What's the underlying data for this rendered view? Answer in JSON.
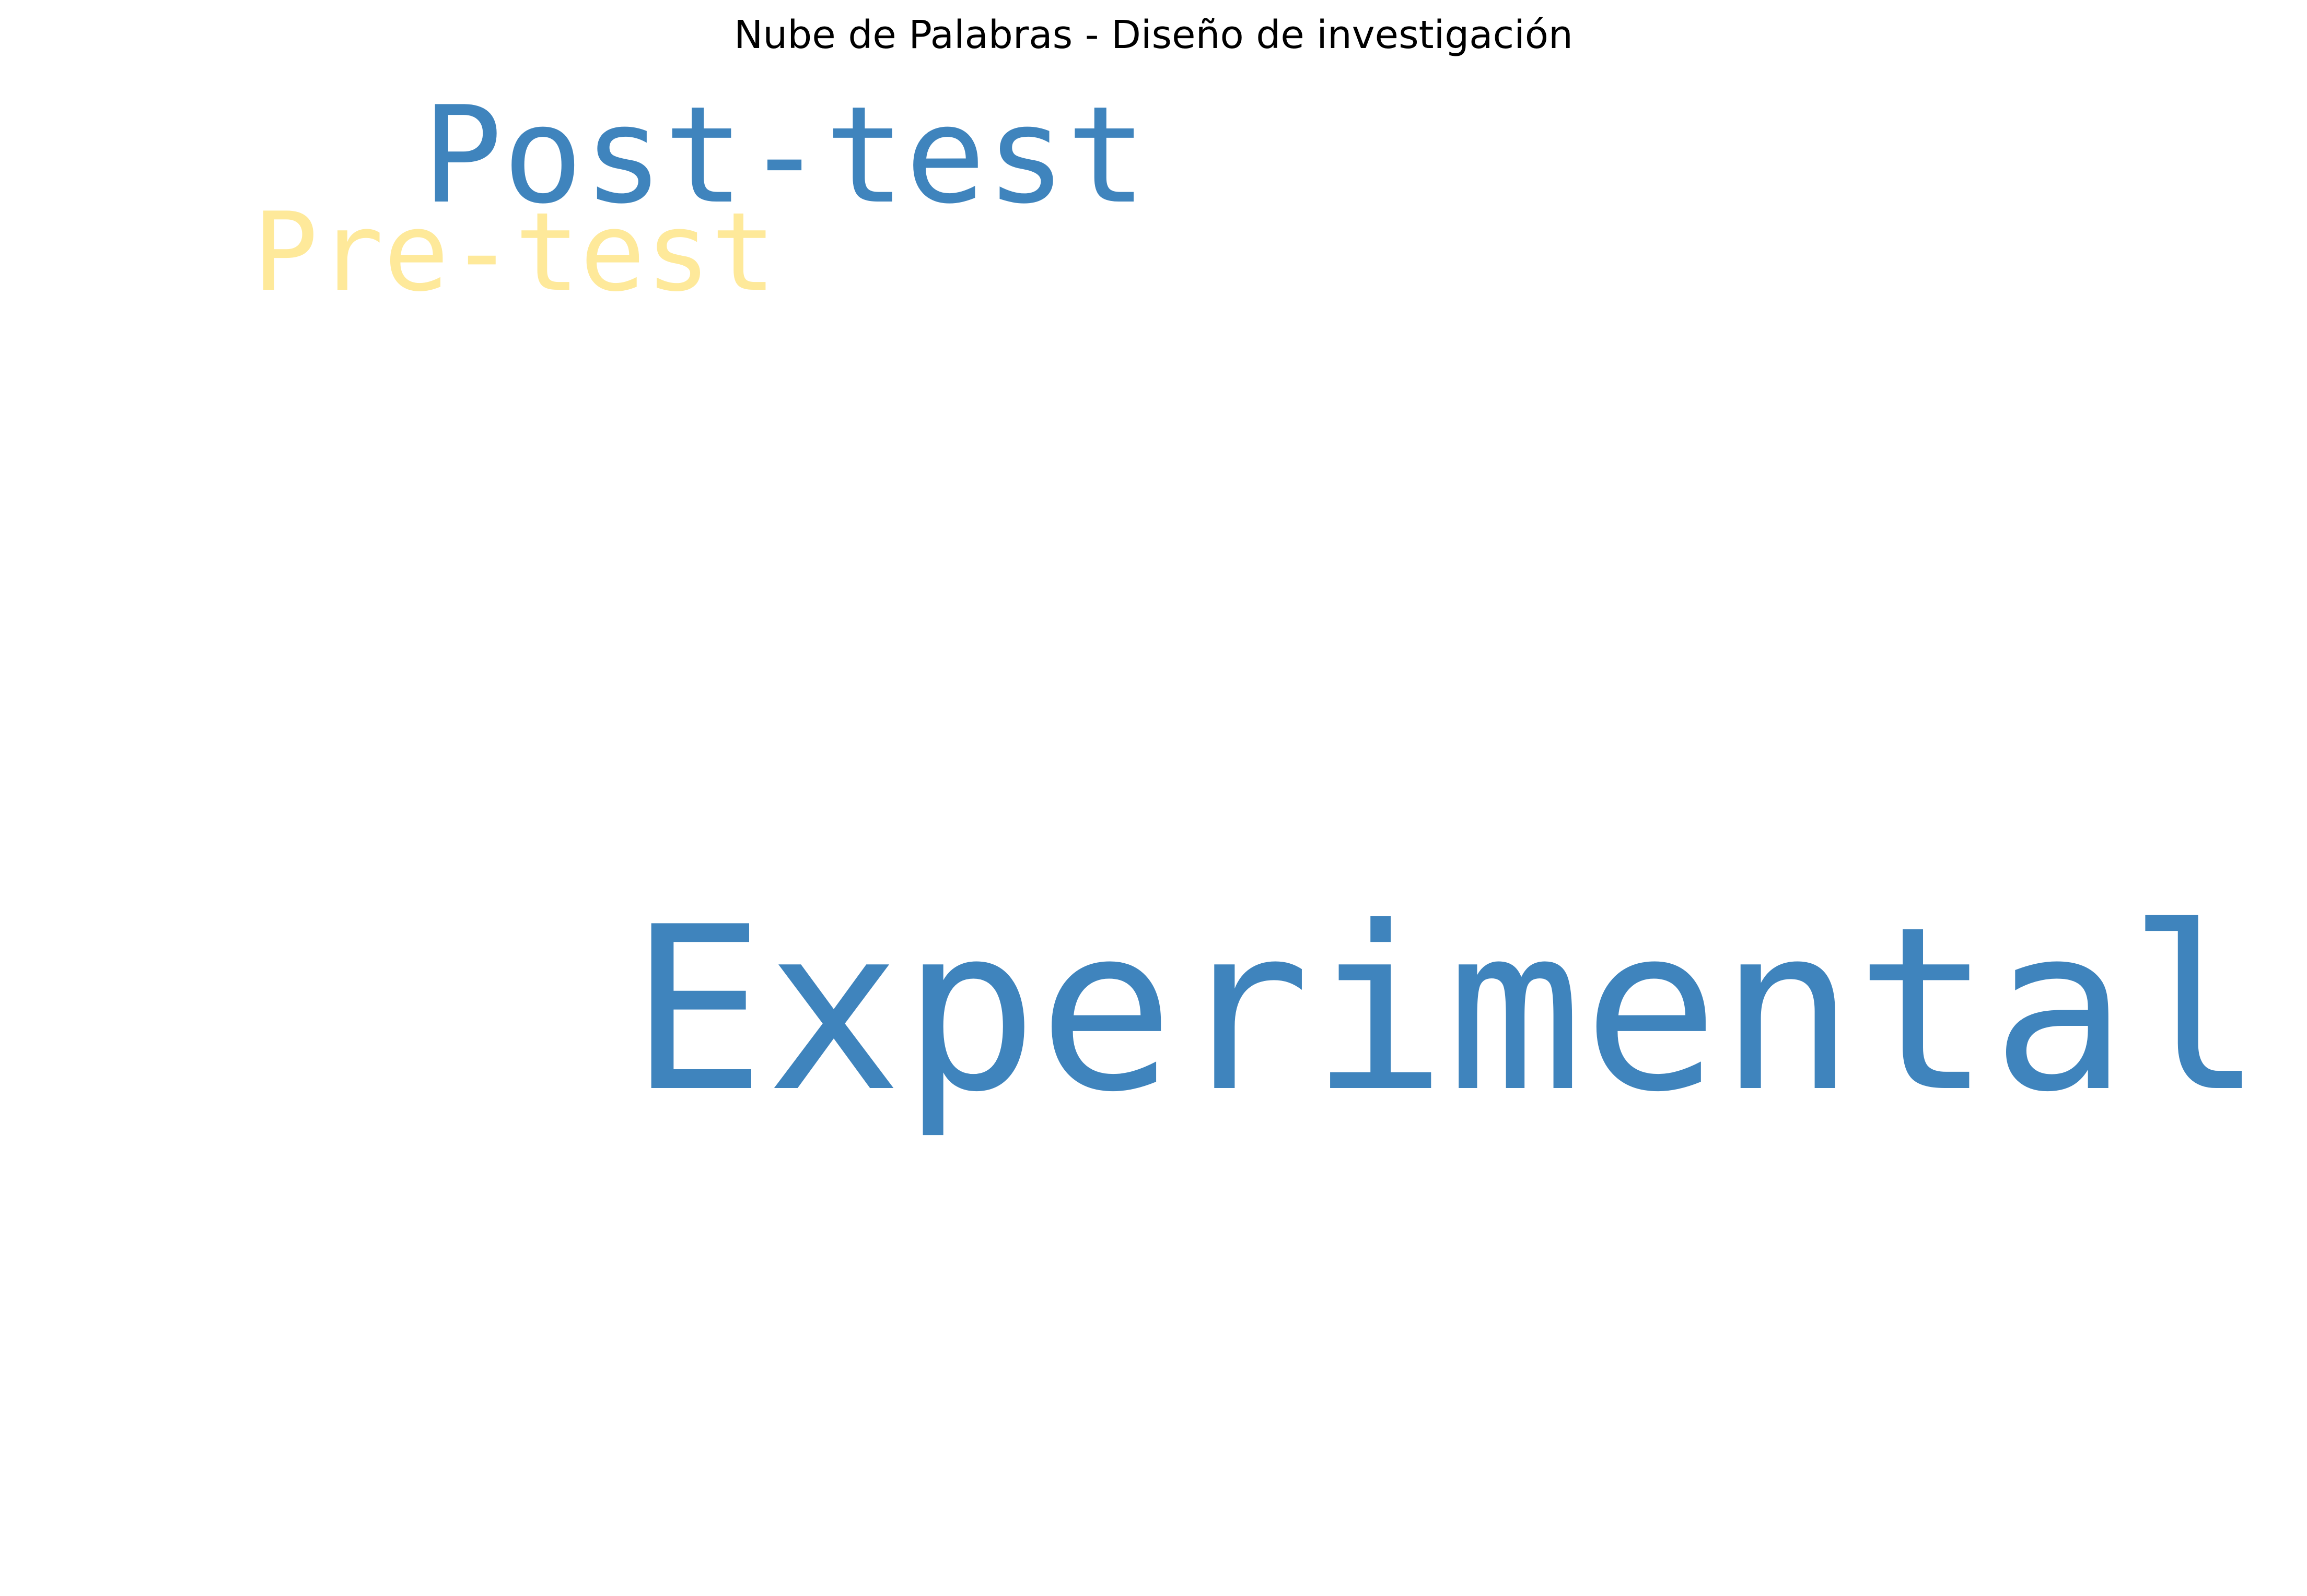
{
  "chart_data": {
    "type": "wordcloud",
    "title": "Nube de Palabras - Diseño de investigación",
    "words": [
      {
        "text": "Experimental",
        "color": "#3f84bd"
      },
      {
        "text": "Post-test",
        "color": "#3f84bd"
      },
      {
        "text": "Pre-test",
        "color": "#fee99a"
      }
    ]
  }
}
